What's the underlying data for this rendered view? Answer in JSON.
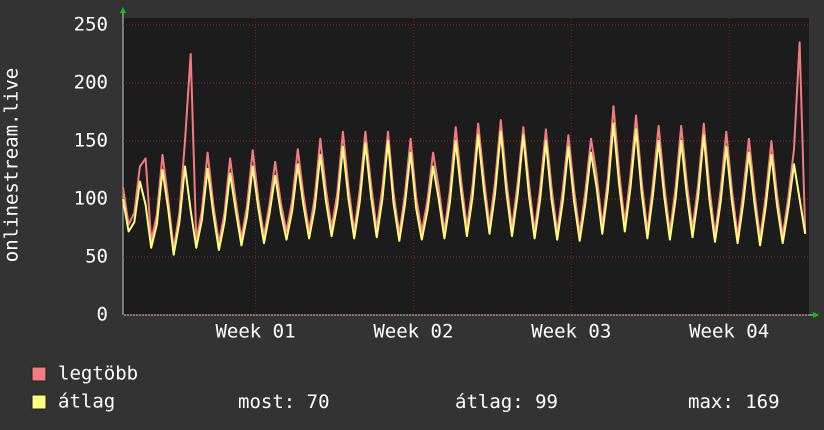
{
  "chart_data": {
    "type": "line",
    "y_label": "onlinestream.live",
    "xlim": [
      0,
      730
    ],
    "xticks": [
      {
        "value": 141,
        "label": "Week 01"
      },
      {
        "value": 309,
        "label": "Week 02"
      },
      {
        "value": 477,
        "label": "Week 03"
      },
      {
        "value": 645,
        "label": "Week 04"
      }
    ],
    "ylim": [
      0,
      250
    ],
    "yticks": [
      0,
      50,
      100,
      150,
      200,
      250
    ],
    "grid": true,
    "x": [
      0,
      6,
      12,
      18,
      24,
      30,
      36,
      42,
      48,
      54,
      60,
      66,
      72,
      78,
      84,
      90,
      96,
      102,
      108,
      114,
      120,
      126,
      132,
      138,
      144,
      150,
      156,
      162,
      168,
      174,
      180,
      186,
      192,
      198,
      204,
      210,
      216,
      222,
      228,
      234,
      240,
      246,
      252,
      258,
      264,
      270,
      276,
      282,
      288,
      294,
      300,
      306,
      312,
      318,
      324,
      330,
      336,
      342,
      348,
      354,
      360,
      366,
      372,
      378,
      384,
      390,
      396,
      402,
      408,
      414,
      420,
      426,
      432,
      438,
      444,
      450,
      456,
      462,
      468,
      474,
      480,
      486,
      492,
      498,
      504,
      510,
      516,
      522,
      528,
      534,
      540,
      546,
      552,
      558,
      564,
      570,
      576,
      582,
      588,
      594,
      600,
      606,
      612,
      618,
      624,
      630,
      636,
      642,
      648,
      654,
      660,
      666,
      672,
      678,
      684,
      690,
      696,
      702,
      708,
      714,
      720,
      726
    ],
    "series": [
      {
        "name": "legtöbb",
        "color": "#f47c80",
        "values": [
          110,
          78,
          88,
          128,
          135,
          64,
          86,
          138,
          100,
          57,
          88,
          150,
          225,
          64,
          90,
          140,
          96,
          62,
          88,
          135,
          98,
          66,
          94,
          142,
          100,
          68,
          96,
          132,
          96,
          72,
          99,
          143,
          104,
          72,
          101,
          152,
          108,
          75,
          105,
          158,
          110,
          72,
          108,
          158,
          112,
          74,
          110,
          158,
          105,
          70,
          104,
          152,
          101,
          72,
          99,
          140,
          110,
          72,
          108,
          162,
          115,
          75,
          112,
          165,
          118,
          77,
          115,
          168,
          116,
          75,
          114,
          162,
          113,
          72,
          110,
          160,
          110,
          71,
          108,
          155,
          108,
          70,
          106,
          152,
          121,
          77,
          118,
          180,
          123,
          79,
          121,
          172,
          115,
          72,
          114,
          163,
          112,
          71,
          110,
          163,
          114,
          74,
          112,
          165,
          110,
          69,
          108,
          158,
          108,
          68,
          106,
          152,
          106,
          66,
          103,
          150,
          104,
          68,
          101,
          143,
          235,
          70
        ]
      },
      {
        "name": "átlag",
        "color": "#ffff80",
        "values": [
          100,
          72,
          80,
          115,
          95,
          58,
          78,
          125,
          92,
          52,
          80,
          128,
          90,
          58,
          82,
          126,
          88,
          56,
          80,
          122,
          90,
          60,
          85,
          128,
          92,
          62,
          88,
          120,
          88,
          65,
          90,
          130,
          95,
          66,
          92,
          138,
          98,
          68,
          95,
          145,
          100,
          66,
          98,
          148,
          102,
          67,
          100,
          150,
          96,
          64,
          95,
          140,
          92,
          65,
          90,
          128,
          100,
          66,
          98,
          150,
          105,
          68,
          102,
          155,
          108,
          70,
          105,
          158,
          106,
          68,
          104,
          155,
          103,
          66,
          100,
          150,
          100,
          65,
          98,
          145,
          98,
          64,
          96,
          140,
          110,
          70,
          108,
          165,
          112,
          72,
          110,
          160,
          105,
          66,
          104,
          150,
          102,
          65,
          100,
          150,
          104,
          67,
          102,
          155,
          100,
          63,
          98,
          145,
          98,
          62,
          96,
          140,
          96,
          60,
          94,
          138,
          95,
          62,
          92,
          130,
          100,
          70
        ]
      }
    ],
    "legend_stats": [
      {
        "label": "most:",
        "value": 70
      },
      {
        "label": "átlag:",
        "value": 99
      },
      {
        "label": "max:",
        "value": 169
      }
    ]
  }
}
